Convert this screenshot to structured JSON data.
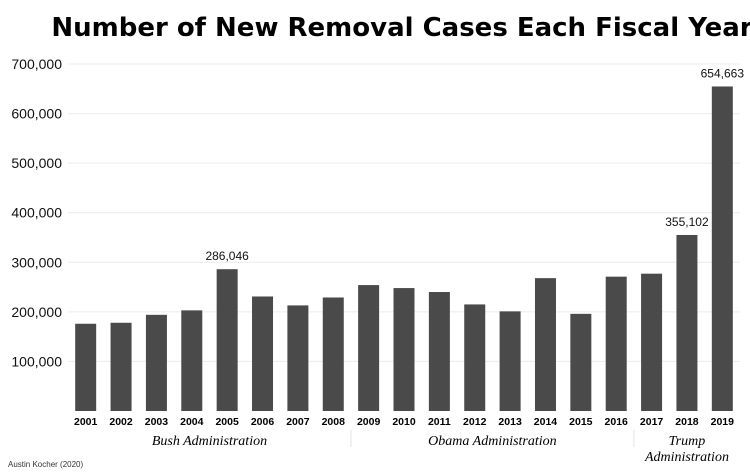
{
  "chart_data": {
    "type": "bar",
    "title": "Number of New Removal Cases Each Fiscal Year",
    "xlabel": "",
    "ylabel": "",
    "categories": [
      "2001",
      "2002",
      "2003",
      "2004",
      "2005",
      "2006",
      "2007",
      "2008",
      "2009",
      "2010",
      "2011",
      "2012",
      "2013",
      "2014",
      "2015",
      "2016",
      "2017",
      "2018",
      "2019"
    ],
    "values": [
      176000,
      178000,
      194000,
      203000,
      286046,
      231000,
      213000,
      229000,
      254000,
      248000,
      240000,
      215000,
      201000,
      268000,
      196000,
      271000,
      277000,
      355102,
      654663
    ],
    "ylim": [
      0,
      700000
    ],
    "yticks": [
      100000,
      200000,
      300000,
      400000,
      500000,
      600000,
      700000
    ],
    "ytick_labels": [
      "100,000",
      "200,000",
      "300,000",
      "400,000",
      "500,000",
      "600,000",
      "700,000"
    ],
    "data_labels": [
      {
        "category": "2005",
        "text": "286,046"
      },
      {
        "category": "2018",
        "text": "355,102"
      },
      {
        "category": "2019",
        "text": "654,663"
      }
    ],
    "groups": [
      {
        "label": "Bush Administration",
        "lines": [
          "Bush Administration"
        ],
        "from": "2001",
        "to": "2008"
      },
      {
        "label": "Obama Administration",
        "lines": [
          "Obama Administration"
        ],
        "from": "2009",
        "to": "2016"
      },
      {
        "label": "Trump Administration",
        "lines": [
          "Trump",
          "Administration"
        ],
        "from": "2017",
        "to": "2019"
      }
    ],
    "grid": true,
    "legend": "none",
    "bar_color": "#4a4a4a"
  },
  "credit": "Austin Kocher (2020)"
}
